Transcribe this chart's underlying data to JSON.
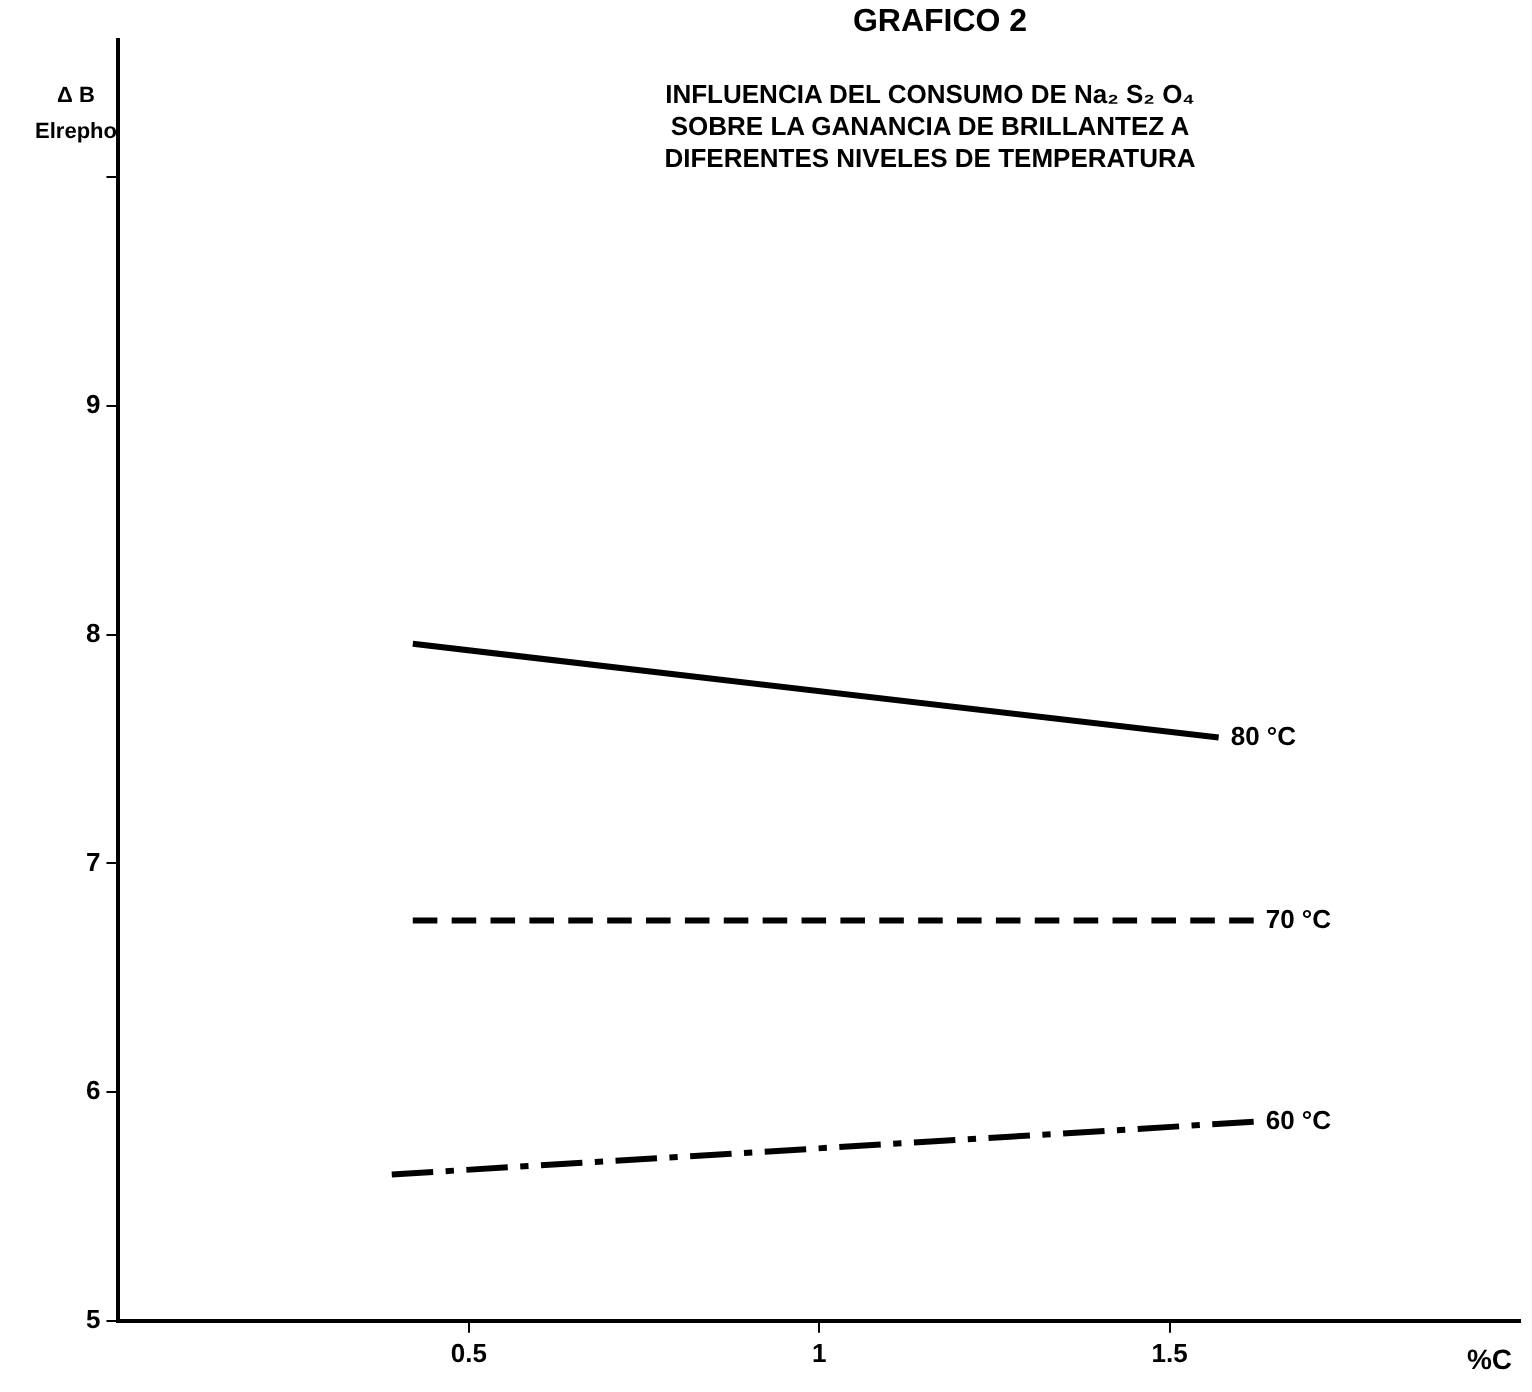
{
  "chart_data": {
    "type": "line",
    "title": "GRAFICO 2",
    "subtitle": "INFLUENCIA DEL CONSUMO DE Na₂ S₂ O₄\nSOBRE LA GANANCIA DE BRILLANTEZ A\nDIFERENTES NIVELES DE TEMPERATURA",
    "xlabel": "%C",
    "ylabel": "Δ B\nElrepho",
    "xlim": [
      0,
      2
    ],
    "xticks": [
      0.5,
      1,
      1.5
    ],
    "ylim": [
      5,
      10.6
    ],
    "yticks": [
      5,
      6,
      7,
      8,
      9,
      {
        "value": 10,
        "label": null
      }
    ],
    "grid": false,
    "legend": false,
    "marker": "none",
    "series": [
      {
        "name": "80 °C",
        "color": "#000000",
        "line_style": "solid",
        "x": [
          0.42,
          1.57
        ],
        "values": [
          7.96,
          7.55
        ]
      },
      {
        "name": "70 °C",
        "color": "#000000",
        "line_style": "dashed",
        "x": [
          0.42,
          1.62
        ],
        "values": [
          6.75,
          6.75
        ]
      },
      {
        "name": "60 °C",
        "color": "#000000",
        "line_style": "dashdot",
        "x": [
          0.39,
          1.62
        ],
        "values": [
          5.64,
          5.87
        ]
      }
    ]
  }
}
